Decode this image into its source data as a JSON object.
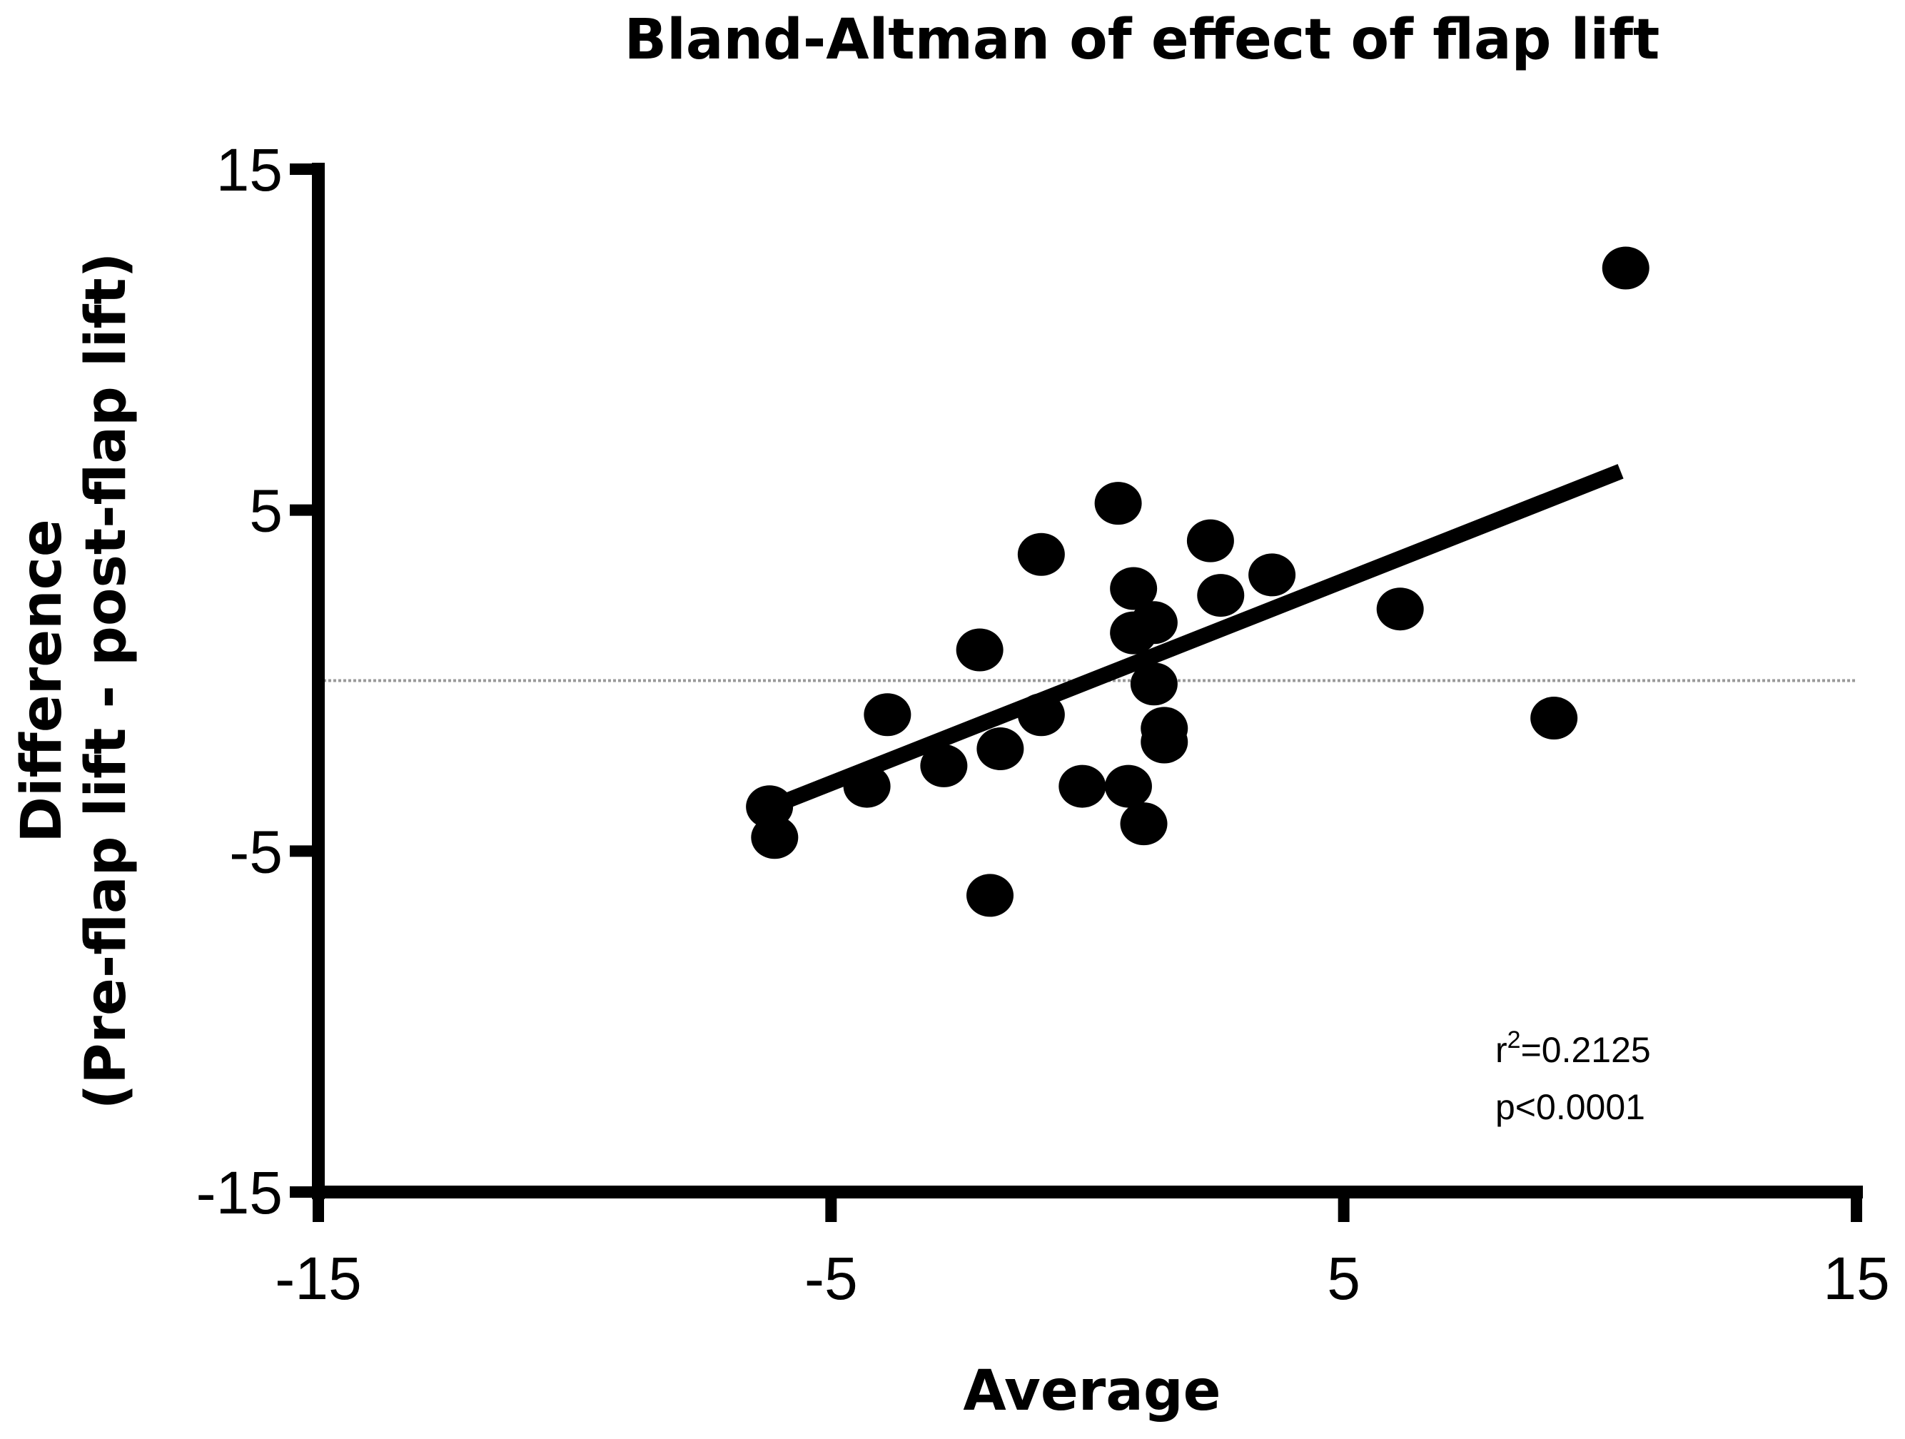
{
  "chart_data": {
    "type": "scatter",
    "title": "Bland-Altman of effect of flap lift",
    "xlabel": "Average",
    "ylabel_line1": "Difference",
    "ylabel_line2": "(Pre-flap lift - post-flap lift)",
    "xlim": [
      -15,
      15
    ],
    "ylim": [
      -15,
      15
    ],
    "xticks": [
      -15,
      -5,
      5,
      15
    ],
    "yticks": [
      -15,
      -5,
      5,
      15
    ],
    "xtick_labels": [
      "-15",
      "-5",
      "5",
      "15"
    ],
    "ytick_labels": [
      "-15",
      "-5",
      "5",
      "15"
    ],
    "grid": false,
    "reference_line": {
      "y": 0,
      "style": "dotted",
      "color": "#9a9a9a"
    },
    "regression_line": {
      "x_start": -6.2,
      "x_end": 10.4,
      "slope": 0.594,
      "intercept": -0.04
    },
    "annotation": {
      "r2_prefix": "r",
      "r2_sup": "2",
      "r2_value": "=0.2125",
      "p_text": "p<0.0001"
    },
    "marker_color": "#000000",
    "points": [
      {
        "x": 10.5,
        "y": 12.1
      },
      {
        "x": 0.6,
        "y": 5.2
      },
      {
        "x": -0.9,
        "y": 3.7
      },
      {
        "x": 2.4,
        "y": 4.1
      },
      {
        "x": 3.6,
        "y": 3.1
      },
      {
        "x": 2.6,
        "y": 2.5
      },
      {
        "x": 0.9,
        "y": 2.7
      },
      {
        "x": 1.3,
        "y": 1.7
      },
      {
        "x": 0.9,
        "y": 1.4
      },
      {
        "x": 6.1,
        "y": 2.1
      },
      {
        "x": -2.1,
        "y": 0.9
      },
      {
        "x": 1.3,
        "y": -0.1
      },
      {
        "x": -3.9,
        "y": -1.0
      },
      {
        "x": -0.9,
        "y": -1.0
      },
      {
        "x": 9.1,
        "y": -1.1
      },
      {
        "x": 1.5,
        "y": -1.4
      },
      {
        "x": 1.5,
        "y": -1.8
      },
      {
        "x": -1.7,
        "y": -2.0
      },
      {
        "x": -2.8,
        "y": -2.5
      },
      {
        "x": -4.3,
        "y": -3.1
      },
      {
        "x": -0.1,
        "y": -3.1
      },
      {
        "x": 0.8,
        "y": -3.1
      },
      {
        "x": 1.1,
        "y": -4.2
      },
      {
        "x": -6.2,
        "y": -3.7
      },
      {
        "x": -6.1,
        "y": -4.6
      },
      {
        "x": -1.9,
        "y": -6.3
      }
    ]
  }
}
